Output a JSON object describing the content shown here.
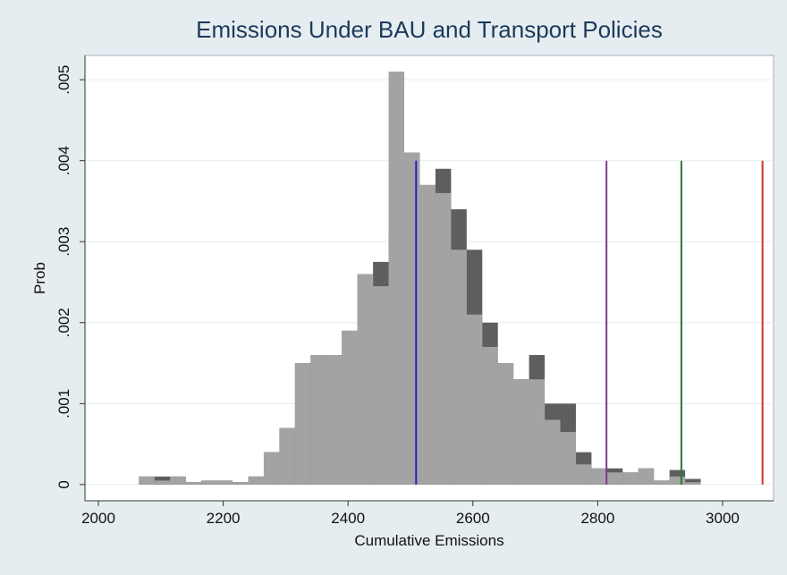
{
  "chart_data": {
    "type": "histogram",
    "title": "Emissions Under BAU and  Transport Policies",
    "x_label": "Cumulative Emissions",
    "y_label": "Prob",
    "bins": [
      2065,
      2090,
      2115,
      2140,
      2165,
      2190,
      2215,
      2240,
      2265,
      2290,
      2315,
      2340,
      2365,
      2390,
      2415,
      2440,
      2465,
      2490,
      2515,
      2540,
      2565,
      2590,
      2615,
      2640,
      2665,
      2690,
      2715,
      2740,
      2765,
      2790,
      2815,
      2840,
      2865,
      2890,
      2915,
      2940,
      2965
    ],
    "series": [
      {
        "color": "#5e5e5e",
        "values": [
          0.0001,
          0.0001,
          0.0001,
          3e-05,
          5e-05,
          5e-05,
          3e-05,
          0.0001,
          0.0004,
          0.0007,
          0.0015,
          0.0016,
          0.0016,
          0.0019,
          0.0026,
          0.00275,
          0.0031,
          0.0041,
          0.0037,
          0.0039,
          0.0034,
          0.0029,
          0.002,
          0.0015,
          0.0013,
          0.0016,
          0.001,
          0.001,
          0.0004,
          0.0002,
          0.0002,
          0.00015,
          0.0002,
          5e-05,
          0.00018,
          7e-05
        ]
      },
      {
        "color": "#a3a3a3",
        "values": [
          0.0001,
          5e-05,
          0.0001,
          3e-05,
          5e-05,
          5e-05,
          3e-05,
          0.0001,
          0.0004,
          0.0007,
          0.0015,
          0.0016,
          0.0016,
          0.0019,
          0.0026,
          0.00245,
          0.0051,
          0.0041,
          0.0037,
          0.0036,
          0.0029,
          0.0021,
          0.0017,
          0.0015,
          0.0013,
          0.0013,
          0.0008,
          0.00065,
          0.00025,
          0.0002,
          0.00015,
          0.00015,
          0.0002,
          5e-05,
          0.0001,
          3e-05
        ]
      }
    ],
    "vlines": [
      {
        "x": 2509,
        "color": "#2020d0"
      },
      {
        "x": 2814,
        "color": "#803a90"
      },
      {
        "x": 2934,
        "color": "#2a7a2a"
      },
      {
        "x": 3064,
        "color": "#d03030"
      }
    ],
    "vline_top": 0.004,
    "xlim": [
      1978.5,
      3081.7
    ],
    "ylim": [
      -0.0002,
      0.0053
    ],
    "xticks": [
      2000,
      2200,
      2400,
      2600,
      2800,
      3000
    ],
    "yticks": [
      0,
      {
        "value": 0.001,
        "label": ".001"
      },
      {
        "value": 0.002,
        "label": ".002"
      },
      {
        "value": 0.003,
        "label": ".003"
      },
      {
        "value": 0.004,
        "label": ".004"
      },
      {
        "value": 0.005,
        "label": ".005"
      }
    ],
    "grid": true
  }
}
